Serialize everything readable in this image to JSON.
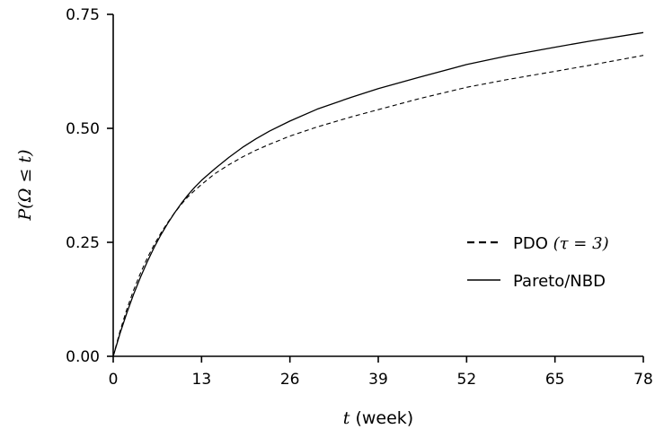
{
  "chart_data": {
    "type": "line",
    "xlabel": "t (week)",
    "xlabel_var": "t",
    "xlabel_unit": " (week)",
    "ylabel": "P(Ω ≤ t)",
    "xlim": [
      0,
      78
    ],
    "ylim": [
      0,
      0.75
    ],
    "x_ticks": [
      0,
      13,
      26,
      39,
      52,
      65,
      78
    ],
    "x_tick_labels": [
      "0",
      "13",
      "26",
      "39",
      "52",
      "65",
      "78"
    ],
    "y_ticks": [
      0,
      0.25,
      0.5,
      0.75
    ],
    "y_tick_labels": [
      "0.00",
      "0.25",
      "0.50",
      "0.75"
    ],
    "grid": false,
    "legend_position": "right",
    "series": [
      {
        "name": "PDO (τ = 3)",
        "name_text": "PDO ",
        "name_math": "(τ = 3)",
        "style": "dashed",
        "x": [
          0,
          1,
          2,
          3,
          4,
          5,
          6,
          7,
          8,
          9,
          10,
          11,
          12,
          13,
          15,
          17,
          19,
          21,
          23,
          26,
          30,
          35,
          39,
          45,
          52,
          58,
          65,
          70,
          78
        ],
        "values": [
          0,
          0.055,
          0.103,
          0.145,
          0.182,
          0.215,
          0.244,
          0.27,
          0.293,
          0.314,
          0.333,
          0.35,
          0.364,
          0.377,
          0.401,
          0.42,
          0.437,
          0.452,
          0.465,
          0.483,
          0.503,
          0.525,
          0.541,
          0.565,
          0.59,
          0.607,
          0.625,
          0.638,
          0.66
        ]
      },
      {
        "name": "Pareto/NBD",
        "name_text": "Pareto/NBD",
        "name_math": "",
        "style": "solid",
        "x": [
          0,
          1,
          2,
          3,
          4,
          5,
          6,
          7,
          8,
          9,
          10,
          11,
          12,
          13,
          15,
          17,
          19,
          21,
          23,
          26,
          30,
          35,
          39,
          45,
          52,
          58,
          65,
          70,
          78
        ],
        "values": [
          0,
          0.05,
          0.095,
          0.136,
          0.173,
          0.207,
          0.238,
          0.266,
          0.291,
          0.314,
          0.335,
          0.354,
          0.371,
          0.386,
          0.412,
          0.436,
          0.458,
          0.477,
          0.494,
          0.516,
          0.542,
          0.568,
          0.587,
          0.612,
          0.64,
          0.659,
          0.678,
          0.691,
          0.71
        ]
      }
    ]
  }
}
